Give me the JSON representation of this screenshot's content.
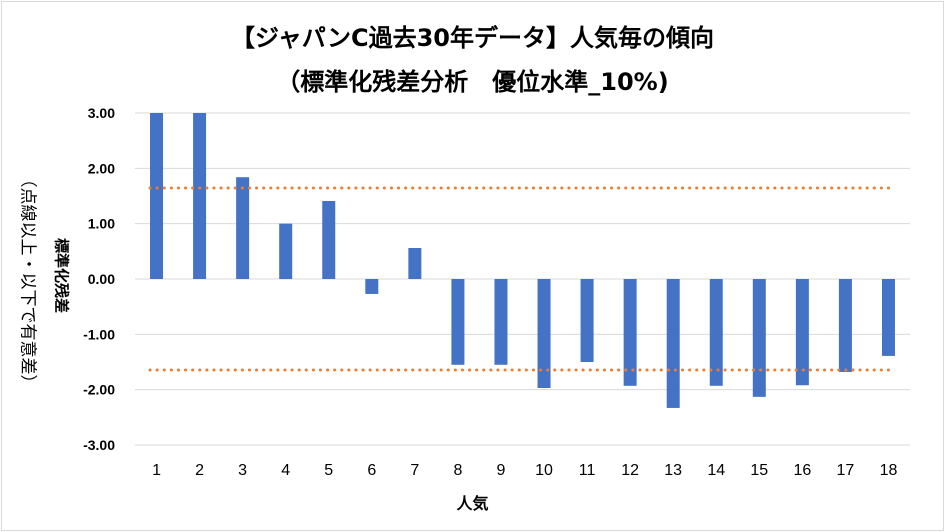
{
  "chart_data": {
    "type": "bar",
    "title": "【ジャパンC過去30年データ】人気毎の傾向",
    "subtitle": "（標準化残差分析　優位水準_10%)",
    "xlabel": "人気",
    "ylabel": "標準化残差",
    "ylabel2": "（点線以上・以下で有意差）",
    "categories": [
      "1",
      "2",
      "3",
      "4",
      "5",
      "6",
      "7",
      "8",
      "9",
      "10",
      "11",
      "12",
      "13",
      "14",
      "15",
      "16",
      "17",
      "18"
    ],
    "values": [
      3.0,
      3.0,
      1.84,
      1.0,
      1.41,
      -0.27,
      0.56,
      -1.55,
      -1.55,
      -1.97,
      -1.5,
      -1.93,
      -2.33,
      -1.93,
      -2.13,
      -1.92,
      -1.68,
      -1.39
    ],
    "ylim": [
      -3,
      3
    ],
    "yticks": [
      "3.00",
      "2.00",
      "1.00",
      "0.00",
      "-1.00",
      "-2.00",
      "-3.00"
    ],
    "threshold_lines": [
      1.645,
      -1.645
    ],
    "bar_color": "#4472c4",
    "threshold_color": "#ed7d31",
    "grid": true
  }
}
